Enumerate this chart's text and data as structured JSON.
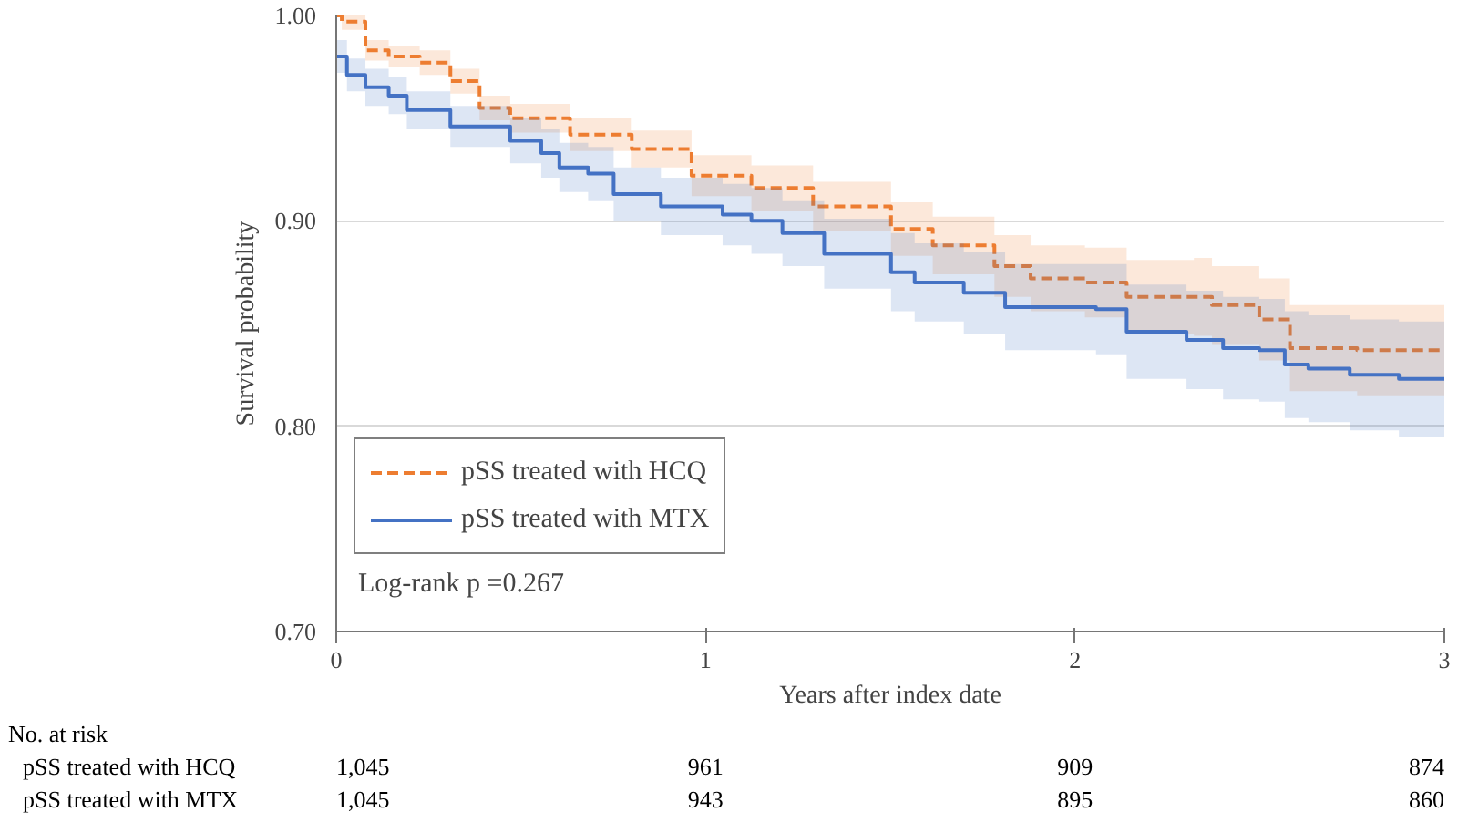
{
  "chart_data": {
    "type": "step",
    "xlabel": "Years after index date",
    "ylabel": "Survival probability",
    "xlim": [
      0,
      3
    ],
    "ylim": [
      0.7,
      1.0
    ],
    "xticks": [
      0,
      1,
      2,
      3
    ],
    "yticks": [
      {
        "value": 0.7,
        "label": "0.70"
      },
      {
        "value": 0.8,
        "label": "0.80"
      },
      {
        "value": 0.9,
        "label": "0.90"
      },
      {
        "value": 1.0,
        "label": "1.00"
      }
    ],
    "grid": "y",
    "legend": "bottom left",
    "series": [
      {
        "name": "pSS treated with HCQ",
        "color": "#ed7d31",
        "line_style": "dashed",
        "x": [
          0,
          0.015,
          0.079,
          0.142,
          0.226,
          0.309,
          0.388,
          0.471,
          0.633,
          0.8,
          0.962,
          1.124,
          1.291,
          1.502,
          1.615,
          1.782,
          1.88,
          2.027,
          2.14,
          2.322,
          2.371,
          2.499,
          2.582,
          2.764,
          3.0
        ],
        "values": [
          1.0,
          0.997,
          0.983,
          0.98,
          0.977,
          0.968,
          0.955,
          0.95,
          0.942,
          0.935,
          0.922,
          0.916,
          0.907,
          0.896,
          0.888,
          0.878,
          0.872,
          0.87,
          0.863,
          0.863,
          0.859,
          0.852,
          0.838,
          0.837,
          0.837
        ],
        "upper": [
          1.0,
          1.0,
          0.988,
          0.985,
          0.983,
          0.974,
          0.961,
          0.957,
          0.95,
          0.944,
          0.932,
          0.927,
          0.919,
          0.909,
          0.902,
          0.893,
          0.888,
          0.887,
          0.881,
          0.882,
          0.878,
          0.872,
          0.859,
          0.859,
          0.86
        ],
        "lower": [
          1.0,
          0.993,
          0.978,
          0.975,
          0.971,
          0.962,
          0.949,
          0.943,
          0.934,
          0.926,
          0.912,
          0.905,
          0.895,
          0.883,
          0.874,
          0.863,
          0.856,
          0.853,
          0.845,
          0.844,
          0.84,
          0.832,
          0.817,
          0.815,
          0.814
        ]
      },
      {
        "name": "pSS treated with MTX",
        "color": "#4472c4",
        "line_style": "solid",
        "x": [
          0,
          0.029,
          0.079,
          0.142,
          0.191,
          0.309,
          0.471,
          0.555,
          0.604,
          0.682,
          0.751,
          0.879,
          1.046,
          1.124,
          1.208,
          1.321,
          1.502,
          1.566,
          1.699,
          1.811,
          2.057,
          2.14,
          2.302,
          2.401,
          2.499,
          2.568,
          2.632,
          2.744,
          2.877,
          3.0
        ],
        "values": [
          0.98,
          0.971,
          0.965,
          0.961,
          0.954,
          0.946,
          0.939,
          0.933,
          0.926,
          0.923,
          0.913,
          0.907,
          0.903,
          0.9,
          0.894,
          0.884,
          0.875,
          0.87,
          0.865,
          0.858,
          0.857,
          0.846,
          0.842,
          0.838,
          0.837,
          0.83,
          0.828,
          0.825,
          0.823,
          0.823
        ],
        "upper": [
          0.988,
          0.979,
          0.974,
          0.97,
          0.963,
          0.956,
          0.95,
          0.945,
          0.938,
          0.936,
          0.926,
          0.921,
          0.918,
          0.916,
          0.91,
          0.901,
          0.894,
          0.889,
          0.885,
          0.879,
          0.879,
          0.869,
          0.866,
          0.863,
          0.862,
          0.856,
          0.854,
          0.852,
          0.851,
          0.852
        ],
        "lower": [
          0.972,
          0.963,
          0.956,
          0.952,
          0.945,
          0.936,
          0.928,
          0.921,
          0.914,
          0.91,
          0.9,
          0.893,
          0.888,
          0.884,
          0.878,
          0.867,
          0.856,
          0.851,
          0.845,
          0.837,
          0.835,
          0.823,
          0.818,
          0.813,
          0.812,
          0.804,
          0.802,
          0.798,
          0.795,
          0.794
        ]
      }
    ],
    "annotations": [
      "Log-rank p =0.267",
      "No. at risk",
      "pSS treated with HCQ",
      "1,045",
      "961",
      "909",
      "874",
      "pSS treated with MTX",
      "1,045",
      "943",
      "895",
      "860"
    ]
  }
}
